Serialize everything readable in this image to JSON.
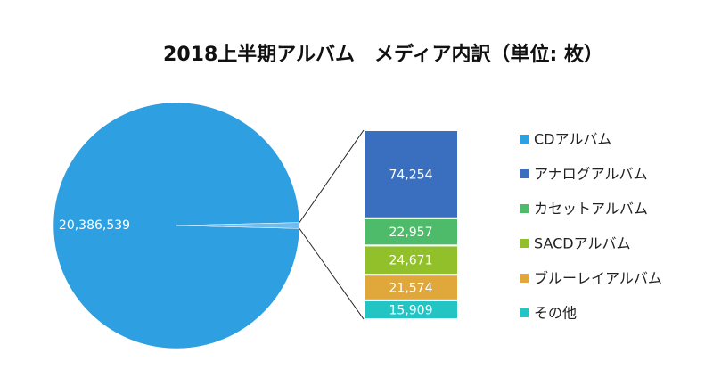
{
  "chart_data": {
    "type": "pie-of-bar",
    "title": "2018上半期アルバム　メディア内訳（単位: 枚）",
    "series": [
      {
        "name": "CDアルバム",
        "color": "#2e9fe0",
        "values": [
          20386539
        ],
        "value_labels": [
          "20,386,539"
        ]
      },
      {
        "name": "アナログアルバム",
        "color": "#3a6fbf",
        "values": [
          74254
        ],
        "value_labels": [
          "74,254"
        ]
      },
      {
        "name": "カセットアルバム",
        "color": "#4dbb6a",
        "values": [
          22957
        ],
        "value_labels": [
          "22,957"
        ]
      },
      {
        "name": "SACDアルバム",
        "color": "#92c02a",
        "values": [
          24671
        ],
        "value_labels": [
          "24,671"
        ]
      },
      {
        "name": "ブルーレイアルバム",
        "color": "#e0a83a",
        "values": [
          21574
        ],
        "value_labels": [
          "21,574"
        ]
      },
      {
        "name": "その他",
        "color": "#22c4c4",
        "values": [
          15909
        ],
        "value_labels": [
          "15,909"
        ]
      }
    ],
    "legend": "right"
  }
}
